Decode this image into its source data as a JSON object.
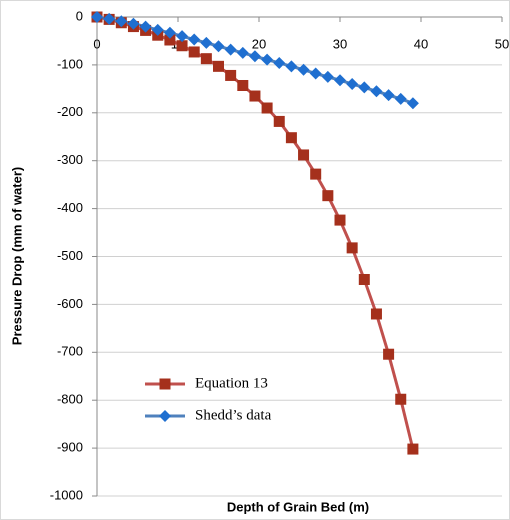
{
  "chart_data": {
    "type": "line",
    "x_label": "Depth of Grain Bed (m)",
    "y_label": "Pressure Drop (mm of water)",
    "x": [
      0,
      1.5,
      3,
      4.5,
      6,
      7.5,
      9,
      10.5,
      12,
      13.5,
      15,
      16.5,
      18,
      19.5,
      21,
      22.5,
      24,
      25.5,
      27,
      28.5,
      30,
      31.5,
      33,
      34.5,
      36,
      37.5,
      39
    ],
    "series": [
      {
        "name": "Equation 13",
        "color": "#c0504d",
        "marker_color": "#a5301c",
        "marker": "square",
        "values": [
          0,
          -5,
          -12,
          -20,
          -28,
          -38,
          -48,
          -60,
          -73,
          -87,
          -103,
          -122,
          -143,
          -165,
          -190,
          -218,
          -252,
          -288,
          -328,
          -373,
          -424,
          -482,
          -548,
          -620,
          -704,
          -798,
          -902
        ]
      },
      {
        "name": "Shedd’s data",
        "color": "#4f81bd",
        "marker_color": "#1f6fd0",
        "marker": "diamond",
        "values": [
          0,
          -4,
          -9,
          -14,
          -20,
          -27,
          -33,
          -40,
          -47,
          -54,
          -61,
          -68,
          -75,
          -82,
          -89,
          -96,
          -103,
          -110,
          -118,
          -125,
          -132,
          -140,
          -147,
          -155,
          -163,
          -171,
          -180
        ]
      }
    ],
    "xlim": [
      0,
      50
    ],
    "xticks": [
      0,
      10,
      20,
      30,
      40,
      50
    ],
    "ylim": [
      -1000,
      0
    ],
    "yticks": [
      0,
      -100,
      -200,
      -300,
      -400,
      -500,
      -600,
      -700,
      -800,
      -900,
      -1000
    ],
    "grid": true,
    "legend": "lower-left"
  }
}
